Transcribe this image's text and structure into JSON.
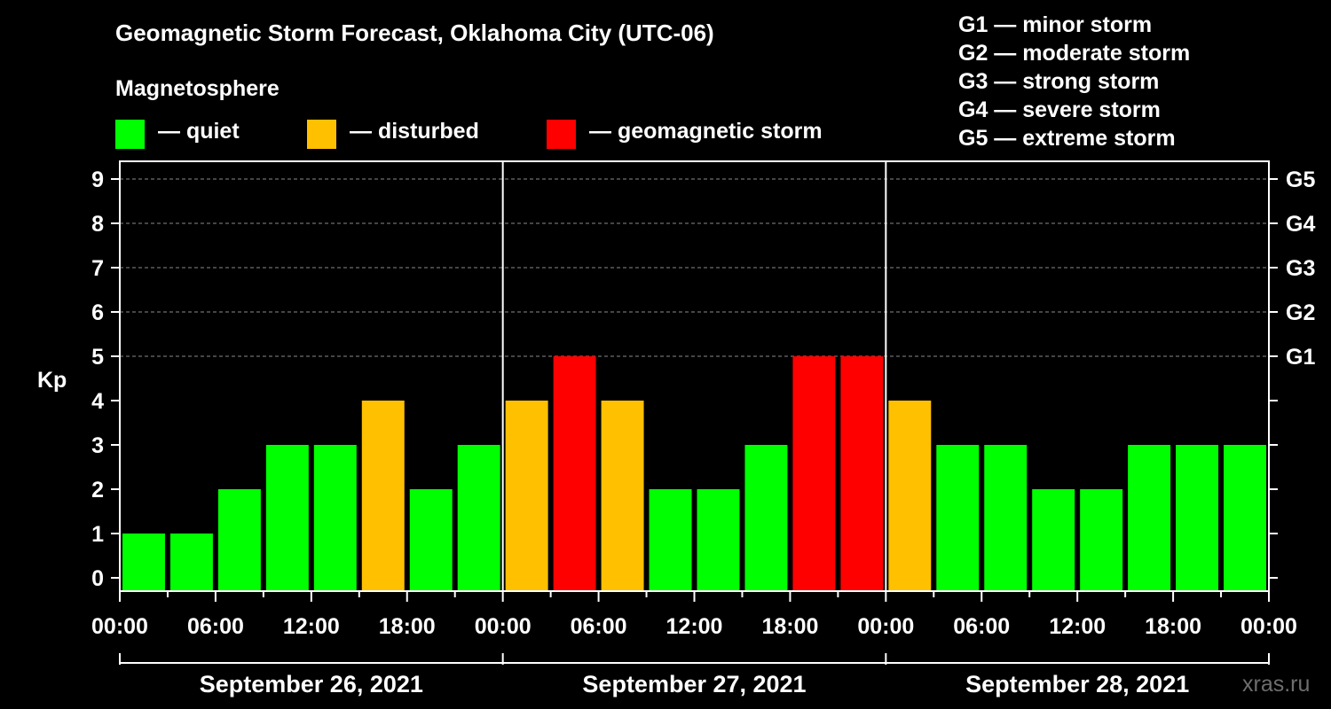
{
  "chart_data": {
    "type": "bar",
    "title": "Geomagnetic Storm Forecast, Oklahoma City (UTC-06)",
    "ylabel": "Kp",
    "ylim": [
      0,
      9
    ],
    "y_ticks": [
      "0",
      "1",
      "2",
      "3",
      "4",
      "5",
      "6",
      "7",
      "8",
      "9"
    ],
    "storm_levels": [
      "G1",
      "G2",
      "G3",
      "G4",
      "G5"
    ],
    "x_tick_labels": [
      "00:00",
      "06:00",
      "12:00",
      "18:00",
      "00:00",
      "06:00",
      "12:00",
      "18:00",
      "00:00",
      "06:00",
      "12:00",
      "18:00",
      "00:00"
    ],
    "days": [
      "September 26, 2021",
      "September 27, 2021",
      "September 28, 2021"
    ],
    "interval_hours": 3,
    "values": [
      1,
      1,
      2,
      3,
      3,
      4,
      2,
      3,
      4,
      5,
      4,
      2,
      2,
      3,
      5,
      5,
      4,
      3,
      3,
      2,
      2,
      3,
      3,
      3
    ],
    "colors": {
      "quiet": "#00ff00",
      "disturbed": "#ffc000",
      "storm": "#ff0000"
    }
  },
  "legend": {
    "heading": "Magnetosphere",
    "quiet": "— quiet",
    "disturbed": "— disturbed",
    "storm": "— geomagnetic storm"
  },
  "scale_legend": [
    "G1 — minor storm",
    "G2 — moderate storm",
    "G3 — strong storm",
    "G4 — severe storm",
    "G5 — extreme storm"
  ],
  "brand": "xras.ru"
}
